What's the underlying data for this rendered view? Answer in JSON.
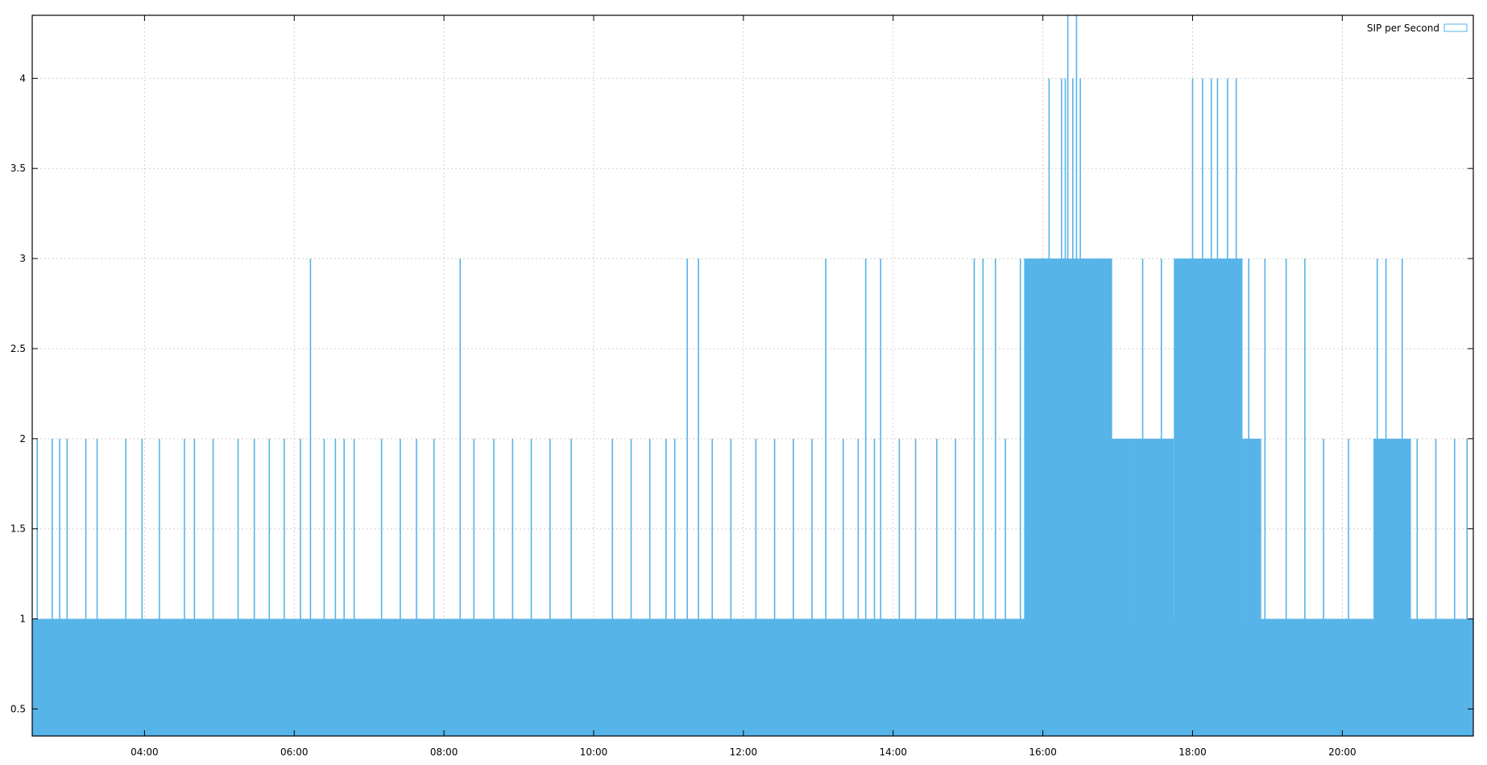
{
  "chart_data": {
    "type": "bar",
    "title": "",
    "xlabel": "",
    "ylabel": "",
    "xlim": [
      "02:30",
      "21:45"
    ],
    "ylim": [
      0.35,
      4.35
    ],
    "x_ticks": [
      "04:00",
      "06:00",
      "08:00",
      "10:00",
      "12:00",
      "14:00",
      "16:00",
      "18:00",
      "20:00"
    ],
    "y_ticks": [
      "0.5",
      "1",
      "1.5",
      "2",
      "2.5",
      "3",
      "3.5",
      "4"
    ],
    "grid": true,
    "legend_position": "top-right",
    "series": [
      {
        "name": "SIP per Second",
        "color": "#56b4e9",
        "baseline": 1,
        "spikes": [
          {
            "x": "02:34",
            "y": 2
          },
          {
            "x": "02:46",
            "y": 2
          },
          {
            "x": "02:52",
            "y": 2
          },
          {
            "x": "02:58",
            "y": 2
          },
          {
            "x": "03:13",
            "y": 2
          },
          {
            "x": "03:22",
            "y": 2
          },
          {
            "x": "03:45",
            "y": 2
          },
          {
            "x": "03:58",
            "y": 2
          },
          {
            "x": "04:12",
            "y": 2
          },
          {
            "x": "04:32",
            "y": 2
          },
          {
            "x": "04:40",
            "y": 2
          },
          {
            "x": "04:55",
            "y": 2
          },
          {
            "x": "05:15",
            "y": 2
          },
          {
            "x": "05:28",
            "y": 2
          },
          {
            "x": "05:40",
            "y": 2
          },
          {
            "x": "05:52",
            "y": 2
          },
          {
            "x": "06:05",
            "y": 2
          },
          {
            "x": "06:13",
            "y": 3
          },
          {
            "x": "06:24",
            "y": 2
          },
          {
            "x": "06:33",
            "y": 2
          },
          {
            "x": "06:40",
            "y": 2
          },
          {
            "x": "06:48",
            "y": 2
          },
          {
            "x": "07:10",
            "y": 2
          },
          {
            "x": "07:25",
            "y": 2
          },
          {
            "x": "07:38",
            "y": 2
          },
          {
            "x": "07:52",
            "y": 2
          },
          {
            "x": "08:13",
            "y": 3
          },
          {
            "x": "08:24",
            "y": 2
          },
          {
            "x": "08:40",
            "y": 2
          },
          {
            "x": "08:55",
            "y": 2
          },
          {
            "x": "09:10",
            "y": 2
          },
          {
            "x": "09:25",
            "y": 2
          },
          {
            "x": "09:42",
            "y": 2
          },
          {
            "x": "10:15",
            "y": 2
          },
          {
            "x": "10:30",
            "y": 2
          },
          {
            "x": "10:45",
            "y": 2
          },
          {
            "x": "10:58",
            "y": 2
          },
          {
            "x": "11:05",
            "y": 2
          },
          {
            "x": "11:15",
            "y": 3
          },
          {
            "x": "11:24",
            "y": 3
          },
          {
            "x": "11:35",
            "y": 2
          },
          {
            "x": "11:50",
            "y": 2
          },
          {
            "x": "12:10",
            "y": 2
          },
          {
            "x": "12:25",
            "y": 2
          },
          {
            "x": "12:40",
            "y": 2
          },
          {
            "x": "12:55",
            "y": 2
          },
          {
            "x": "13:06",
            "y": 3
          },
          {
            "x": "13:20",
            "y": 2
          },
          {
            "x": "13:32",
            "y": 2
          },
          {
            "x": "13:38",
            "y": 3
          },
          {
            "x": "13:45",
            "y": 2
          },
          {
            "x": "13:50",
            "y": 3
          },
          {
            "x": "14:05",
            "y": 2
          },
          {
            "x": "14:18",
            "y": 2
          },
          {
            "x": "14:35",
            "y": 2
          },
          {
            "x": "14:50",
            "y": 2
          },
          {
            "x": "15:05",
            "y": 3
          },
          {
            "x": "15:12",
            "y": 3
          },
          {
            "x": "15:22",
            "y": 3
          },
          {
            "x": "15:30",
            "y": 2
          },
          {
            "x": "15:42",
            "y": 3
          },
          {
            "x": "15:50",
            "y": 3
          },
          {
            "x": "15:58",
            "y": 3
          },
          {
            "x": "16:05",
            "y": 4
          },
          {
            "x": "16:10",
            "y": 3
          },
          {
            "x": "16:15",
            "y": 4
          },
          {
            "x": "16:18",
            "y": 4
          },
          {
            "x": "16:20",
            "y": 4.4
          },
          {
            "x": "16:24",
            "y": 4
          },
          {
            "x": "16:27",
            "y": 4.4
          },
          {
            "x": "16:30",
            "y": 4
          },
          {
            "x": "16:35",
            "y": 3
          },
          {
            "x": "16:42",
            "y": 3
          },
          {
            "x": "16:48",
            "y": 3
          },
          {
            "x": "16:55",
            "y": 3
          },
          {
            "x": "17:05",
            "y": 2
          },
          {
            "x": "17:20",
            "y": 3
          },
          {
            "x": "17:35",
            "y": 3
          },
          {
            "x": "17:48",
            "y": 3
          },
          {
            "x": "18:00",
            "y": 4
          },
          {
            "x": "18:08",
            "y": 4
          },
          {
            "x": "18:15",
            "y": 4
          },
          {
            "x": "18:20",
            "y": 4
          },
          {
            "x": "18:28",
            "y": 4
          },
          {
            "x": "18:35",
            "y": 4
          },
          {
            "x": "18:45",
            "y": 3
          },
          {
            "x": "18:58",
            "y": 3
          },
          {
            "x": "19:15",
            "y": 3
          },
          {
            "x": "19:30",
            "y": 3
          },
          {
            "x": "19:45",
            "y": 2
          },
          {
            "x": "20:05",
            "y": 2
          },
          {
            "x": "20:28",
            "y": 3
          },
          {
            "x": "20:35",
            "y": 3
          },
          {
            "x": "20:48",
            "y": 3
          },
          {
            "x": "21:00",
            "y": 2
          },
          {
            "x": "21:15",
            "y": 2
          },
          {
            "x": "21:30",
            "y": 2
          },
          {
            "x": "21:40",
            "y": 2
          }
        ],
        "dense_regions": [
          {
            "from": "15:45",
            "to": "16:55",
            "y": 3
          },
          {
            "from": "16:55",
            "to": "17:10",
            "y": 2
          },
          {
            "from": "17:10",
            "to": "17:45",
            "y": 2
          },
          {
            "from": "17:45",
            "to": "18:40",
            "y": 3
          },
          {
            "from": "18:40",
            "to": "18:55",
            "y": 2
          },
          {
            "from": "20:25",
            "to": "20:55",
            "y": 2
          }
        ]
      }
    ]
  }
}
